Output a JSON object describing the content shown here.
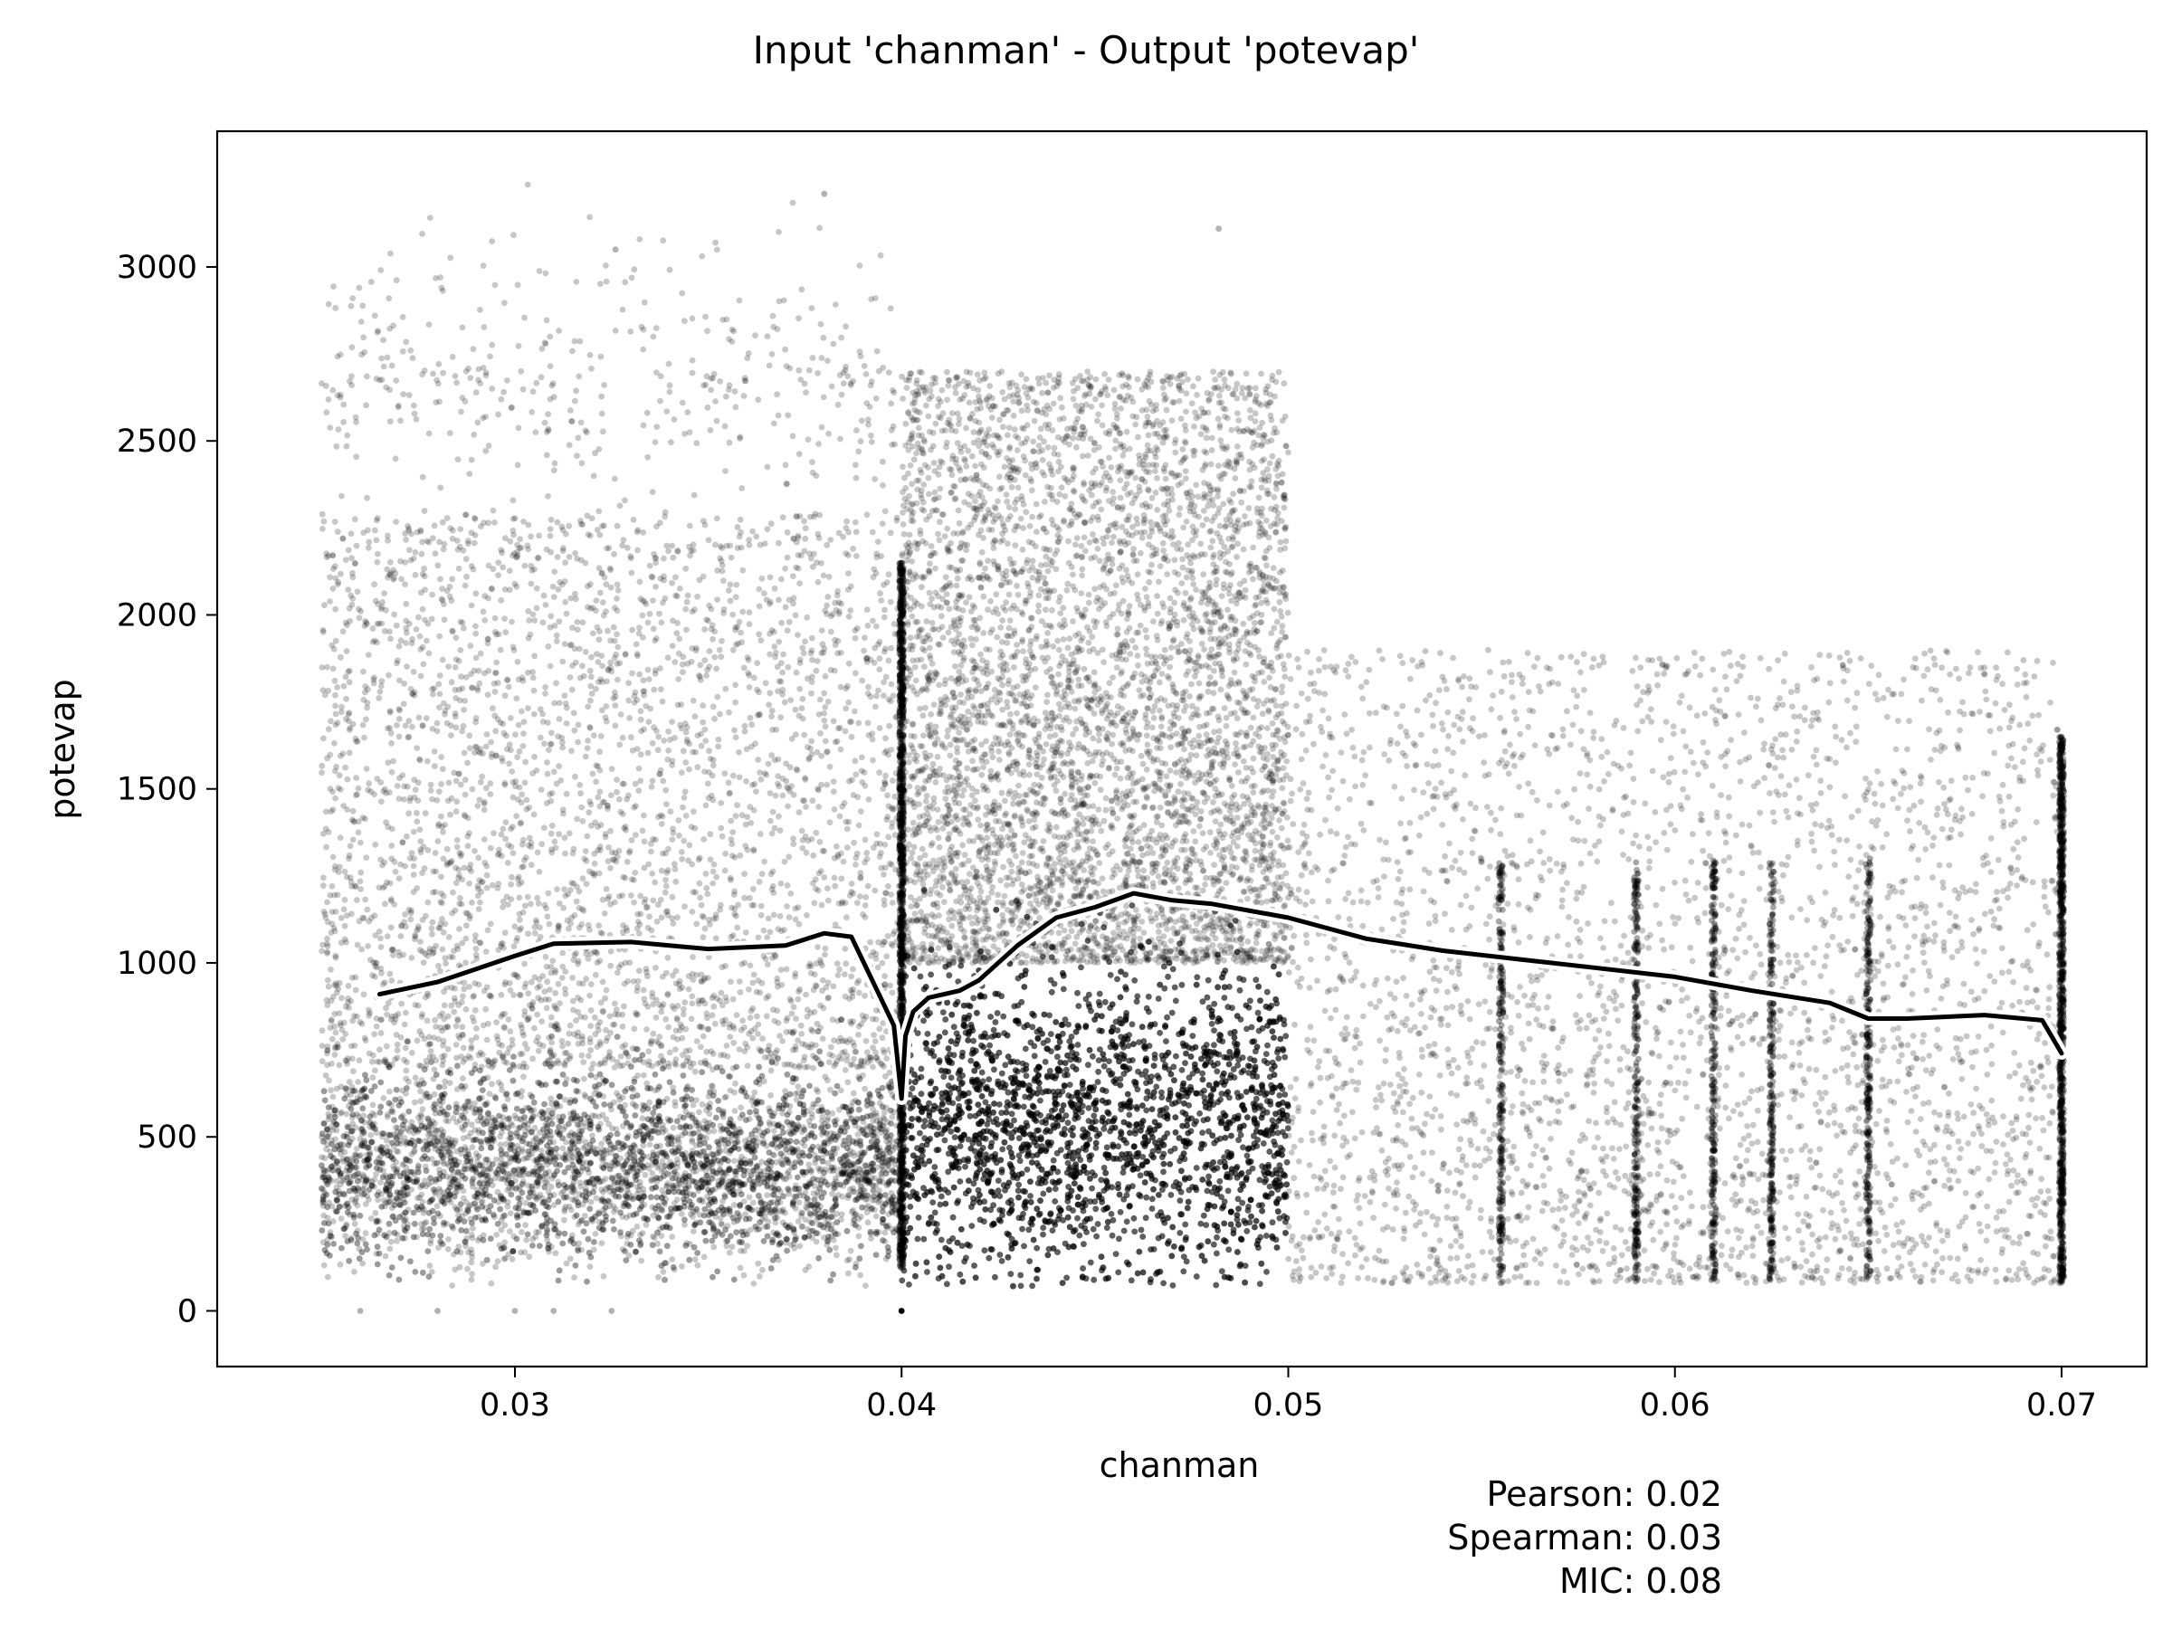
{
  "chart_data": {
    "type": "scatter",
    "title": "Input 'chanman' - Output 'potevap'",
    "xlabel": "chanman",
    "ylabel": "potevap",
    "xlim": [
      0.0223,
      0.0722
    ],
    "ylim": [
      -160,
      3390
    ],
    "x_ticks": [
      0.03,
      0.04,
      0.05,
      0.06,
      0.07
    ],
    "x_tick_labels": [
      "0.03",
      "0.04",
      "0.05",
      "0.06",
      "0.07"
    ],
    "y_ticks": [
      0,
      500,
      1000,
      1500,
      2000,
      2500,
      3000
    ],
    "y_tick_labels": [
      "0",
      "500",
      "1000",
      "1500",
      "2000",
      "2500",
      "3000"
    ],
    "grid": false,
    "point_color": "#000000",
    "trend_color": "#000000",
    "trend_outline_color": "#ffffff",
    "series": [
      {
        "kind": "scatter",
        "approximate_density_clusters": [
          {
            "x_range": [
              0.025,
              0.0399
            ],
            "y_range": [
              150,
              700
            ],
            "weight": "high"
          },
          {
            "x_range": [
              0.025,
              0.0399
            ],
            "y_range": [
              700,
              2300
            ],
            "weight": "medium"
          },
          {
            "x_range": [
              0.025,
              0.0399
            ],
            "y_range": [
              2300,
              3050
            ],
            "weight": "low"
          },
          {
            "x_range": [
              0.04,
              0.05
            ],
            "y_range": [
              100,
              1000
            ],
            "weight": "very high"
          },
          {
            "x_range": [
              0.04,
              0.05
            ],
            "y_range": [
              1000,
              2700
            ],
            "weight": "high"
          },
          {
            "x_range": [
              0.05,
              0.07
            ],
            "y_range": [
              80,
              1900
            ],
            "weight": "medium"
          }
        ],
        "notable_points": [
          {
            "x": 0.026,
            "y": 0
          },
          {
            "x": 0.028,
            "y": 0
          },
          {
            "x": 0.03,
            "y": 0
          },
          {
            "x": 0.031,
            "y": 0
          },
          {
            "x": 0.0325,
            "y": 0
          },
          {
            "x": 0.04,
            "y": 0
          },
          {
            "x": 0.038,
            "y": 3210
          },
          {
            "x": 0.0482,
            "y": 3110
          },
          {
            "x": 0.0326,
            "y": 3050
          }
        ],
        "vertical_streaks_x": [
          0.04,
          0.0555,
          0.059,
          0.061,
          0.0625,
          0.065,
          0.07
        ]
      },
      {
        "kind": "line",
        "x": [
          0.0265,
          0.028,
          0.03,
          0.031,
          0.033,
          0.035,
          0.037,
          0.038,
          0.0387,
          0.0395,
          0.0398,
          0.04,
          0.0401,
          0.0403,
          0.0407,
          0.0415,
          0.042,
          0.043,
          0.044,
          0.045,
          0.046,
          0.047,
          0.048,
          0.05,
          0.052,
          0.054,
          0.056,
          0.058,
          0.06,
          0.062,
          0.064,
          0.065,
          0.066,
          0.068,
          0.0695,
          0.07
        ],
        "y": [
          910,
          945,
          1020,
          1055,
          1060,
          1040,
          1050,
          1085,
          1075,
          890,
          820,
          610,
          790,
          860,
          900,
          920,
          950,
          1050,
          1130,
          1160,
          1200,
          1180,
          1170,
          1130,
          1070,
          1035,
          1010,
          985,
          960,
          920,
          885,
          840,
          840,
          850,
          835,
          740
        ]
      }
    ],
    "annotations": [
      "Pearson: 0.02",
      "Spearman: 0.03",
      "MIC: 0.08"
    ]
  }
}
